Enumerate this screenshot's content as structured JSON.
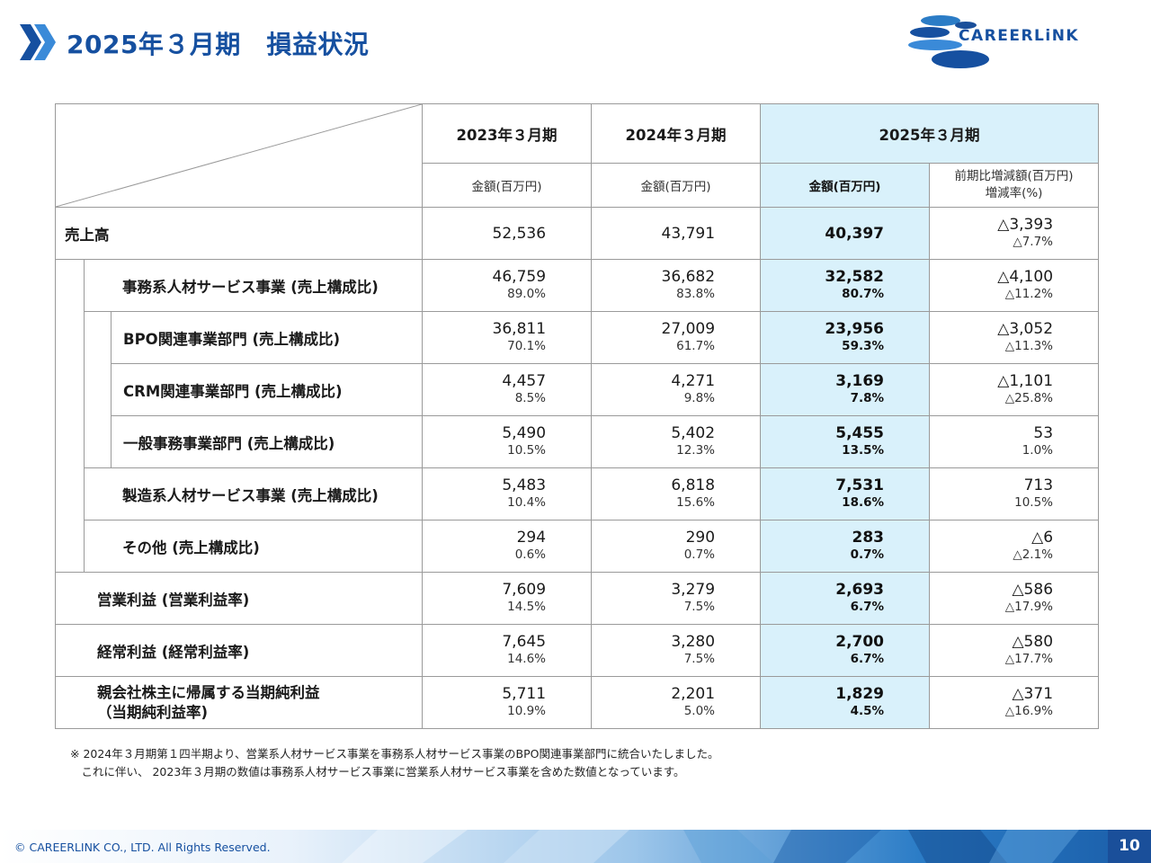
{
  "header": {
    "title": "2025年３月期　損益状況",
    "logo_text": "CAREERLiNK",
    "accent_color": "#1650a0",
    "highlight_color": "#d9f1fb"
  },
  "table": {
    "years": [
      "2023年３月期",
      "2024年３月期",
      "2025年３月期"
    ],
    "units": [
      "金額(百万円)",
      "金額(百万円)",
      "金額(百万円)"
    ],
    "change_unit_line1": "前期比増減額(百万円)",
    "change_unit_line2": "増減率(%)",
    "rows": [
      {
        "label": "売上高",
        "v2023": "52,536",
        "v2024": "43,791",
        "v2025": "40,397",
        "chg": "△3,393",
        "chg_pct": "△7.7%"
      },
      {
        "label": "事務系人材サービス事業 (売上構成比)",
        "v2023": "46,759",
        "p2023": "89.0%",
        "v2024": "36,682",
        "p2024": "83.8%",
        "v2025": "32,582",
        "p2025": "80.7%",
        "chg": "△4,100",
        "chg_pct": "△11.2%"
      },
      {
        "label": "BPO関連事業部門 (売上構成比)",
        "v2023": "36,811",
        "p2023": "70.1%",
        "v2024": "27,009",
        "p2024": "61.7%",
        "v2025": "23,956",
        "p2025": "59.3%",
        "chg": "△3,052",
        "chg_pct": "△11.3%"
      },
      {
        "label": "CRM関連事業部門 (売上構成比)",
        "v2023": "4,457",
        "p2023": "8.5%",
        "v2024": "4,271",
        "p2024": "9.8%",
        "v2025": "3,169",
        "p2025": "7.8%",
        "chg": "△1,101",
        "chg_pct": "△25.8%"
      },
      {
        "label": "一般事務事業部門 (売上構成比)",
        "v2023": "5,490",
        "p2023": "10.5%",
        "v2024": "5,402",
        "p2024": "12.3%",
        "v2025": "5,455",
        "p2025": "13.5%",
        "chg": "53",
        "chg_pct": "1.0%"
      },
      {
        "label": "製造系人材サービス事業 (売上構成比)",
        "v2023": "5,483",
        "p2023": "10.4%",
        "v2024": "6,818",
        "p2024": "15.6%",
        "v2025": "7,531",
        "p2025": "18.6%",
        "chg": "713",
        "chg_pct": "10.5%"
      },
      {
        "label": "その他 (売上構成比)",
        "v2023": "294",
        "p2023": "0.6%",
        "v2024": "290",
        "p2024": "0.7%",
        "v2025": "283",
        "p2025": "0.7%",
        "chg": "△6",
        "chg_pct": "△2.1%"
      },
      {
        "label": "営業利益 (営業利益率)",
        "v2023": "7,609",
        "p2023": "14.5%",
        "v2024": "3,279",
        "p2024": "7.5%",
        "v2025": "2,693",
        "p2025": "6.7%",
        "chg": "△586",
        "chg_pct": "△17.9%"
      },
      {
        "label": "経常利益 (経常利益率)",
        "v2023": "7,645",
        "p2023": "14.6%",
        "v2024": "3,280",
        "p2024": "7.5%",
        "v2025": "2,700",
        "p2025": "6.7%",
        "chg": "△580",
        "chg_pct": "△17.7%"
      },
      {
        "label": "親会社株主に帰属する当期純利益",
        "label2": "（当期純利益率)",
        "v2023": "5,711",
        "p2023": "10.9%",
        "v2024": "2,201",
        "p2024": "5.0%",
        "v2025": "1,829",
        "p2025": "4.5%",
        "chg": "△371",
        "chg_pct": "△16.9%"
      }
    ]
  },
  "notes": {
    "line1": "※ 2024年３月期第１四半期より、営業系人材サービス事業を事務系人材サービス事業のBPO関連事業部門に統合いたしました。",
    "line2": "　これに伴い、 2023年３月期の数値は事務系人材サービス事業に営業系人材サービス事業を含めた数値となっています。"
  },
  "footer": {
    "copyright": "© CAREERLINK CO., LTD. All Rights Reserved.",
    "page_number": "10"
  }
}
